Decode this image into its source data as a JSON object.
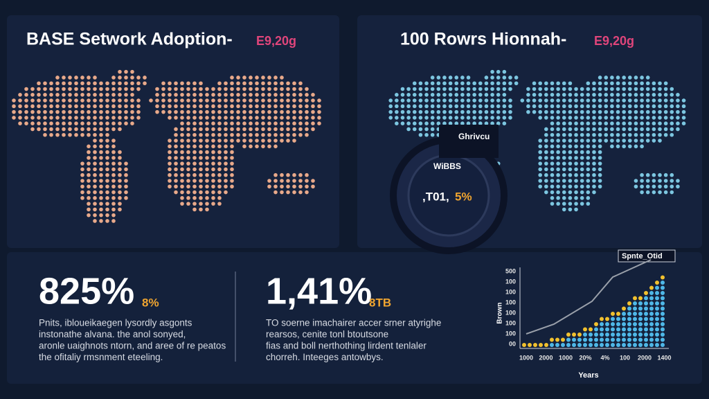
{
  "panels": {
    "left": {
      "title": "BASE Setwork Adoption-",
      "title_accent": "E9,20g"
    },
    "right": {
      "title": "100 Rowrs Hionnah-",
      "title_accent": "E9,20g"
    }
  },
  "gauge": {
    "card": "Ghrivcu",
    "label": "WiBBS",
    "value": ",T01,",
    "accent": "5%"
  },
  "stats": [
    {
      "value": "825%",
      "unit": "8%",
      "description": [
        "Pnits, ibloueikaegen lysordly asgonts",
        "instonathe alvana. the anol sonyed,",
        "aronle uaighnots ntorn, and aree of re peatos",
        "the ofitaliy rmsnment eteeling."
      ]
    },
    {
      "value": "1,41%",
      "unit": "8TB",
      "description": [
        "TO soerne imachairer accer srner atyrighe",
        "rearsos, cenite tonl btoutsone",
        "fias and boll nerthothing lirdent tenlaler",
        "chorreh. Inteeges antowbys."
      ]
    }
  ],
  "chart": {
    "legend": "Spnte_Otid",
    "y_label": "Brown",
    "x_label": "Years",
    "y_ticks": [
      "500",
      "100",
      "100",
      "100",
      "100",
      "100",
      "100",
      "00"
    ],
    "x_ticks": [
      "1000",
      "2000",
      "1000",
      "20%",
      "4%",
      "100",
      "2000",
      "1400"
    ]
  }
}
